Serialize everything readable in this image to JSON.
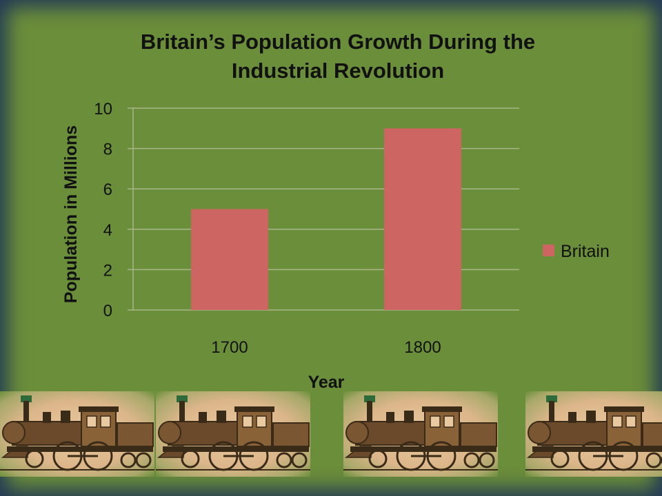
{
  "slide": {
    "title_line1": "Britain’s Population Growth During the",
    "title_line2": "Industrial Revolution"
  },
  "chart_data": {
    "type": "bar",
    "title": "Britain’s Population Growth During the Industrial Revolution",
    "categories": [
      "1700",
      "1800"
    ],
    "series": [
      {
        "name": "Britain",
        "values": [
          5,
          9
        ],
        "color": "#cd6662"
      }
    ],
    "xlabel": "Year",
    "ylabel": "Population in Millions",
    "ylim": [
      0,
      10
    ],
    "yticks": [
      0,
      2,
      4,
      6,
      8,
      10
    ],
    "grid": true,
    "legend_position": "right"
  },
  "decor": {
    "train_images": [
      "locomotive-engraving",
      "locomotive-engraving",
      "locomotive-engraving",
      "locomotive-engraving"
    ]
  },
  "colors": {
    "background": "#6b8e3a",
    "border": "#1e3a66",
    "bar": "#cd6662",
    "gridline": "#a9b58a"
  }
}
